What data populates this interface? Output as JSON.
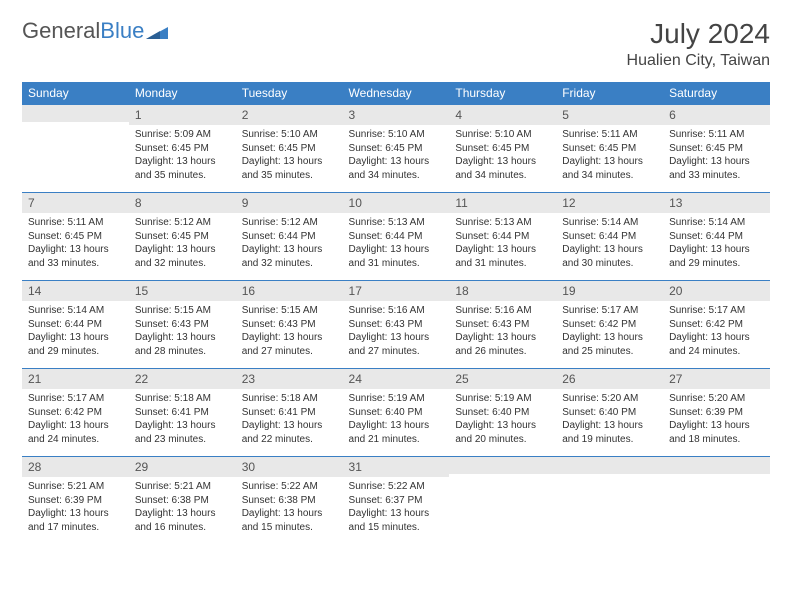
{
  "logo": {
    "text1": "General",
    "text2": "Blue"
  },
  "title": "July 2024",
  "subtitle": "Hualien City, Taiwan",
  "colors": {
    "header_bg": "#3a7fc4",
    "header_fg": "#ffffff",
    "daynum_bg": "#e8e8e8",
    "border": "#3a7fc4",
    "text": "#333333"
  },
  "day_names": [
    "Sunday",
    "Monday",
    "Tuesday",
    "Wednesday",
    "Thursday",
    "Friday",
    "Saturday"
  ],
  "weeks": [
    [
      {
        "num": "",
        "lines": []
      },
      {
        "num": "1",
        "lines": [
          "Sunrise: 5:09 AM",
          "Sunset: 6:45 PM",
          "Daylight: 13 hours and 35 minutes."
        ]
      },
      {
        "num": "2",
        "lines": [
          "Sunrise: 5:10 AM",
          "Sunset: 6:45 PM",
          "Daylight: 13 hours and 35 minutes."
        ]
      },
      {
        "num": "3",
        "lines": [
          "Sunrise: 5:10 AM",
          "Sunset: 6:45 PM",
          "Daylight: 13 hours and 34 minutes."
        ]
      },
      {
        "num": "4",
        "lines": [
          "Sunrise: 5:10 AM",
          "Sunset: 6:45 PM",
          "Daylight: 13 hours and 34 minutes."
        ]
      },
      {
        "num": "5",
        "lines": [
          "Sunrise: 5:11 AM",
          "Sunset: 6:45 PM",
          "Daylight: 13 hours and 34 minutes."
        ]
      },
      {
        "num": "6",
        "lines": [
          "Sunrise: 5:11 AM",
          "Sunset: 6:45 PM",
          "Daylight: 13 hours and 33 minutes."
        ]
      }
    ],
    [
      {
        "num": "7",
        "lines": [
          "Sunrise: 5:11 AM",
          "Sunset: 6:45 PM",
          "Daylight: 13 hours and 33 minutes."
        ]
      },
      {
        "num": "8",
        "lines": [
          "Sunrise: 5:12 AM",
          "Sunset: 6:45 PM",
          "Daylight: 13 hours and 32 minutes."
        ]
      },
      {
        "num": "9",
        "lines": [
          "Sunrise: 5:12 AM",
          "Sunset: 6:44 PM",
          "Daylight: 13 hours and 32 minutes."
        ]
      },
      {
        "num": "10",
        "lines": [
          "Sunrise: 5:13 AM",
          "Sunset: 6:44 PM",
          "Daylight: 13 hours and 31 minutes."
        ]
      },
      {
        "num": "11",
        "lines": [
          "Sunrise: 5:13 AM",
          "Sunset: 6:44 PM",
          "Daylight: 13 hours and 31 minutes."
        ]
      },
      {
        "num": "12",
        "lines": [
          "Sunrise: 5:14 AM",
          "Sunset: 6:44 PM",
          "Daylight: 13 hours and 30 minutes."
        ]
      },
      {
        "num": "13",
        "lines": [
          "Sunrise: 5:14 AM",
          "Sunset: 6:44 PM",
          "Daylight: 13 hours and 29 minutes."
        ]
      }
    ],
    [
      {
        "num": "14",
        "lines": [
          "Sunrise: 5:14 AM",
          "Sunset: 6:44 PM",
          "Daylight: 13 hours and 29 minutes."
        ]
      },
      {
        "num": "15",
        "lines": [
          "Sunrise: 5:15 AM",
          "Sunset: 6:43 PM",
          "Daylight: 13 hours and 28 minutes."
        ]
      },
      {
        "num": "16",
        "lines": [
          "Sunrise: 5:15 AM",
          "Sunset: 6:43 PM",
          "Daylight: 13 hours and 27 minutes."
        ]
      },
      {
        "num": "17",
        "lines": [
          "Sunrise: 5:16 AM",
          "Sunset: 6:43 PM",
          "Daylight: 13 hours and 27 minutes."
        ]
      },
      {
        "num": "18",
        "lines": [
          "Sunrise: 5:16 AM",
          "Sunset: 6:43 PM",
          "Daylight: 13 hours and 26 minutes."
        ]
      },
      {
        "num": "19",
        "lines": [
          "Sunrise: 5:17 AM",
          "Sunset: 6:42 PM",
          "Daylight: 13 hours and 25 minutes."
        ]
      },
      {
        "num": "20",
        "lines": [
          "Sunrise: 5:17 AM",
          "Sunset: 6:42 PM",
          "Daylight: 13 hours and 24 minutes."
        ]
      }
    ],
    [
      {
        "num": "21",
        "lines": [
          "Sunrise: 5:17 AM",
          "Sunset: 6:42 PM",
          "Daylight: 13 hours and 24 minutes."
        ]
      },
      {
        "num": "22",
        "lines": [
          "Sunrise: 5:18 AM",
          "Sunset: 6:41 PM",
          "Daylight: 13 hours and 23 minutes."
        ]
      },
      {
        "num": "23",
        "lines": [
          "Sunrise: 5:18 AM",
          "Sunset: 6:41 PM",
          "Daylight: 13 hours and 22 minutes."
        ]
      },
      {
        "num": "24",
        "lines": [
          "Sunrise: 5:19 AM",
          "Sunset: 6:40 PM",
          "Daylight: 13 hours and 21 minutes."
        ]
      },
      {
        "num": "25",
        "lines": [
          "Sunrise: 5:19 AM",
          "Sunset: 6:40 PM",
          "Daylight: 13 hours and 20 minutes."
        ]
      },
      {
        "num": "26",
        "lines": [
          "Sunrise: 5:20 AM",
          "Sunset: 6:40 PM",
          "Daylight: 13 hours and 19 minutes."
        ]
      },
      {
        "num": "27",
        "lines": [
          "Sunrise: 5:20 AM",
          "Sunset: 6:39 PM",
          "Daylight: 13 hours and 18 minutes."
        ]
      }
    ],
    [
      {
        "num": "28",
        "lines": [
          "Sunrise: 5:21 AM",
          "Sunset: 6:39 PM",
          "Daylight: 13 hours and 17 minutes."
        ]
      },
      {
        "num": "29",
        "lines": [
          "Sunrise: 5:21 AM",
          "Sunset: 6:38 PM",
          "Daylight: 13 hours and 16 minutes."
        ]
      },
      {
        "num": "30",
        "lines": [
          "Sunrise: 5:22 AM",
          "Sunset: 6:38 PM",
          "Daylight: 13 hours and 15 minutes."
        ]
      },
      {
        "num": "31",
        "lines": [
          "Sunrise: 5:22 AM",
          "Sunset: 6:37 PM",
          "Daylight: 13 hours and 15 minutes."
        ]
      },
      {
        "num": "",
        "lines": []
      },
      {
        "num": "",
        "lines": []
      },
      {
        "num": "",
        "lines": []
      }
    ]
  ]
}
